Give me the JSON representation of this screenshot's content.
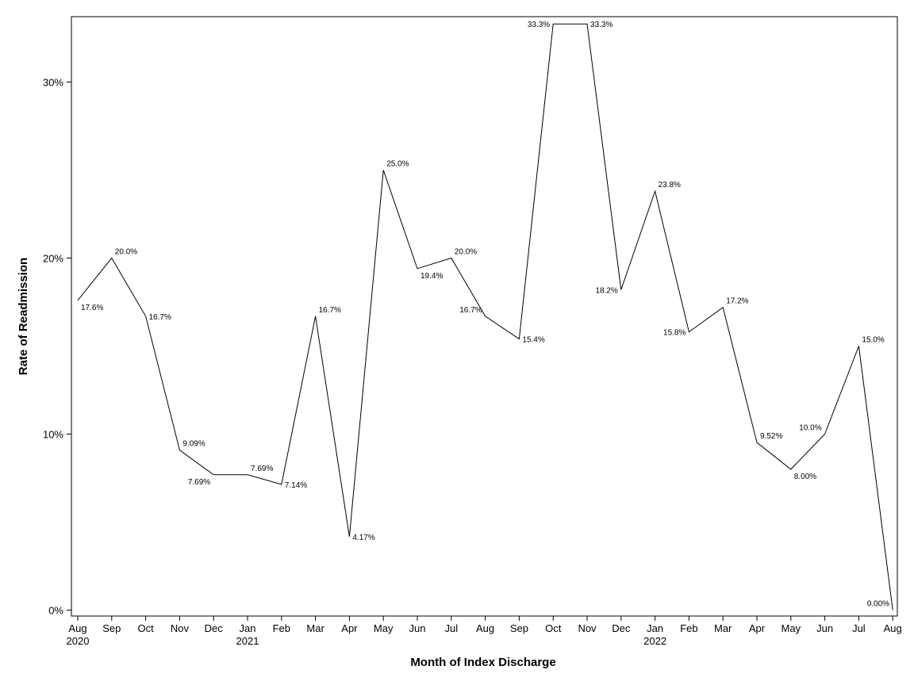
{
  "chart_data": {
    "type": "line",
    "title": "",
    "xlabel": "Month of Index Discharge",
    "ylabel": "Rate of Readmission",
    "ylim": [
      0,
      33.3
    ],
    "yticks": [
      {
        "value": 0,
        "label": "0%"
      },
      {
        "value": 10,
        "label": "10%"
      },
      {
        "value": 20,
        "label": "20%"
      },
      {
        "value": 30,
        "label": "30%"
      }
    ],
    "categories": [
      "Aug",
      "Sep",
      "Oct",
      "Nov",
      "Dec",
      "Jan",
      "Feb",
      "Mar",
      "Apr",
      "May",
      "Jun",
      "Jul",
      "Aug",
      "Sep",
      "Oct",
      "Nov",
      "Dec",
      "Jan",
      "Feb",
      "Mar",
      "Apr",
      "May",
      "Jun",
      "Jul",
      "Aug"
    ],
    "year_labels": [
      {
        "index": 0,
        "label": "2020"
      },
      {
        "index": 5,
        "label": "2021"
      },
      {
        "index": 17,
        "label": "2022"
      }
    ],
    "series": [
      {
        "name": "Rate of Readmission",
        "values": [
          17.6,
          20.0,
          16.7,
          9.09,
          7.69,
          7.69,
          7.14,
          16.7,
          4.17,
          25.0,
          19.4,
          20.0,
          16.7,
          15.4,
          33.3,
          33.3,
          18.2,
          23.8,
          15.8,
          17.2,
          9.52,
          8.0,
          10.0,
          15.0,
          0.0
        ],
        "labels": [
          "17.6%",
          "20.0%",
          "16.7%",
          "9.09%",
          "7.69%",
          "7.69%",
          "7.14%",
          "16.7%",
          "4.17%",
          "25.0%",
          "19.4%",
          "20.0%",
          "16.7%",
          "15.4%",
          "33.3%",
          "33.3%",
          "18.2%",
          "23.8%",
          "15.8%",
          "17.2%",
          "9.52%",
          "8.00%",
          "10.0%",
          "15.0%",
          "0.00%"
        ],
        "label_positions": [
          "below-right",
          "above-right",
          "right",
          "above-right",
          "below-left",
          "above-right",
          "right",
          "above-right",
          "right",
          "above-right",
          "below-right",
          "above-right",
          "above-left",
          "right",
          "left",
          "right",
          "left",
          "above-right",
          "left",
          "above-right",
          "above-right",
          "below-right",
          "above-left",
          "above-right",
          "above-left"
        ]
      }
    ]
  }
}
